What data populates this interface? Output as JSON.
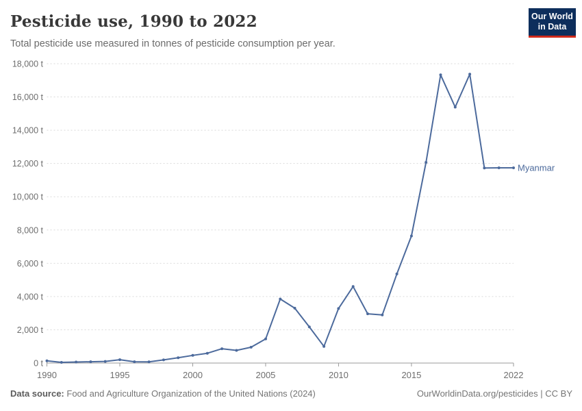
{
  "header": {
    "title": "Pesticide use, 1990 to 2022",
    "subtitle": "Total pesticide use measured in tonnes of pesticide consumption per year."
  },
  "logo": {
    "line1": "Our World",
    "line2": "in Data",
    "bg_color": "#0d2e5c",
    "accent_color": "#d02a1b"
  },
  "footer": {
    "source_label": "Data source:",
    "source_text": "Food and Agriculture Organization of the United Nations (2024)",
    "credit_text": "OurWorldinData.org/pesticides | CC BY"
  },
  "chart_data": {
    "type": "line",
    "title": "Pesticide use, 1990 to 2022",
    "subtitle": "Total pesticide use measured in tonnes of pesticide consumption per year.",
    "unit": "t",
    "xlabel": "",
    "ylabel": "",
    "xlim": [
      1990,
      2022
    ],
    "ylim": [
      0,
      18000
    ],
    "xticks": [
      1990,
      1995,
      2000,
      2005,
      2010,
      2015,
      2022
    ],
    "yticks": [
      0,
      2000,
      4000,
      6000,
      8000,
      10000,
      12000,
      14000,
      16000,
      18000
    ],
    "grid": "horizontal-dashed",
    "legend": "end-of-line-label",
    "x": [
      1990,
      1991,
      1992,
      1993,
      1994,
      1995,
      1996,
      1997,
      1998,
      1999,
      2000,
      2001,
      2002,
      2003,
      2004,
      2005,
      2006,
      2007,
      2008,
      2009,
      2010,
      2011,
      2012,
      2013,
      2014,
      2015,
      2016,
      2017,
      2018,
      2019,
      2020,
      2021,
      2022
    ],
    "series": [
      {
        "name": "Myanmar",
        "color": "#4c6a9c",
        "values": [
          130,
          40,
          60,
          80,
          100,
          200,
          80,
          70,
          190,
          320,
          460,
          590,
          860,
          760,
          950,
          1450,
          3850,
          3300,
          2170,
          1000,
          3280,
          4600,
          2960,
          2890,
          5360,
          7640,
          12070,
          17330,
          15390,
          17370,
          11730,
          11740,
          11740
        ]
      }
    ]
  }
}
